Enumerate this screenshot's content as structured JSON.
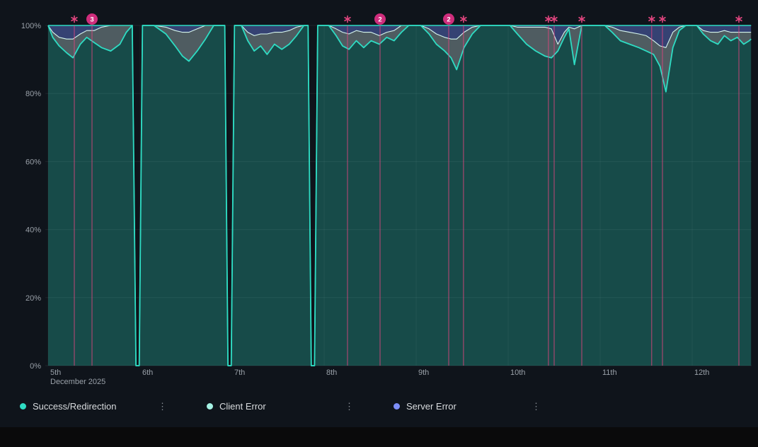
{
  "window": {
    "background": "#0f141b",
    "footer_color": "#0a0a0b"
  },
  "chart_data": {
    "type": "area",
    "variant": "stacked-percent-timeseries",
    "title": "",
    "x_axis": {
      "tick_labels": [
        "5th",
        "6th",
        "7th",
        "8th",
        "9th",
        "10th",
        "11th",
        "12th"
      ],
      "secondary_label": "December 2025"
    },
    "y_axis": {
      "tick_values": [
        0,
        20,
        40,
        60,
        80,
        100
      ],
      "tick_suffix": "%",
      "min": 0,
      "max": 100
    },
    "grid": true,
    "legend_position": "bottom",
    "series_meta": [
      {
        "name": "Success/Redirection",
        "line_color": "#2edcc3",
        "fill_color": "rgba(46,220,195,0.28)"
      },
      {
        "name": "Client Error",
        "line_color": "#d6f6ef",
        "fill_color": "rgba(185,210,214,0.38)"
      },
      {
        "name": "Server Error",
        "line_color": "#2edcc3",
        "fill_color": "rgba(110,134,247,0.40)"
      }
    ],
    "points_format": [
      "day_offset_from_first_tick",
      "success_pct",
      "client_error_pct",
      "server_error_pct"
    ],
    "points": [
      [
        0.0,
        100,
        0,
        0
      ],
      [
        0.05,
        96.5,
        1.5,
        2
      ],
      [
        0.12,
        94,
        2.5,
        3.5
      ],
      [
        0.2,
        92,
        4,
        4
      ],
      [
        0.27,
        90.5,
        5.5,
        4
      ],
      [
        0.35,
        94.5,
        3,
        2.5
      ],
      [
        0.42,
        96.5,
        2,
        1.5
      ],
      [
        0.5,
        95,
        3.5,
        1.5
      ],
      [
        0.58,
        93.5,
        6,
        0.5
      ],
      [
        0.68,
        92.5,
        7.5,
        0
      ],
      [
        0.78,
        94.5,
        5.5,
        0
      ],
      [
        0.85,
        98,
        2,
        0
      ],
      [
        0.915,
        100,
        0,
        0
      ],
      [
        0.955,
        0,
        0,
        0
      ],
      [
        0.99,
        0,
        0,
        0
      ],
      [
        1.025,
        100,
        0,
        0
      ],
      [
        1.15,
        100,
        0,
        0
      ],
      [
        1.28,
        97.5,
        2,
        0.5
      ],
      [
        1.38,
        94,
        4.5,
        1.5
      ],
      [
        1.46,
        91,
        7,
        2
      ],
      [
        1.53,
        89.5,
        8.5,
        2
      ],
      [
        1.62,
        92.5,
        6.5,
        1
      ],
      [
        1.71,
        96,
        4,
        0
      ],
      [
        1.8,
        100,
        0,
        0
      ],
      [
        1.92,
        100,
        0,
        0
      ],
      [
        1.955,
        0,
        0,
        0
      ],
      [
        1.99,
        0,
        0,
        0
      ],
      [
        2.025,
        100,
        0,
        0
      ],
      [
        2.1,
        100,
        0,
        0
      ],
      [
        2.17,
        95.5,
        2.5,
        2
      ],
      [
        2.24,
        92.5,
        4.5,
        3
      ],
      [
        2.31,
        94,
        3.5,
        2.5
      ],
      [
        2.38,
        91.5,
        6,
        2.5
      ],
      [
        2.46,
        94.5,
        3.5,
        2
      ],
      [
        2.54,
        93,
        5,
        2
      ],
      [
        2.62,
        94.5,
        4,
        1.5
      ],
      [
        2.7,
        97,
        2.5,
        0.5
      ],
      [
        2.78,
        100,
        0,
        0
      ],
      [
        2.825,
        100,
        0,
        0
      ],
      [
        2.86,
        0,
        0,
        0
      ],
      [
        2.895,
        0,
        0,
        0
      ],
      [
        2.93,
        100,
        0,
        0
      ],
      [
        3.05,
        100,
        0,
        0
      ],
      [
        3.13,
        97,
        2,
        1
      ],
      [
        3.2,
        94,
        4,
        2
      ],
      [
        3.27,
        93,
        4.5,
        2.5
      ],
      [
        3.35,
        95.5,
        3,
        1.5
      ],
      [
        3.43,
        93.5,
        4.5,
        2
      ],
      [
        3.51,
        95.5,
        2.5,
        2
      ],
      [
        3.6,
        94.5,
        2.5,
        3
      ],
      [
        3.68,
        96.5,
        1.5,
        2
      ],
      [
        3.76,
        95.5,
        3,
        1.5
      ],
      [
        3.84,
        98,
        2,
        0
      ],
      [
        3.92,
        100,
        0,
        0
      ],
      [
        4.05,
        100,
        0,
        0
      ],
      [
        4.14,
        97.5,
        1.5,
        1
      ],
      [
        4.22,
        94.5,
        3,
        2.5
      ],
      [
        4.31,
        92.5,
        4,
        3.5
      ],
      [
        4.38,
        90.5,
        5.5,
        4
      ],
      [
        4.44,
        87,
        9,
        4
      ],
      [
        4.52,
        93.5,
        4.5,
        2
      ],
      [
        4.61,
        97.5,
        2,
        0.5
      ],
      [
        4.7,
        100,
        0,
        0
      ],
      [
        4.85,
        100,
        0,
        0
      ],
      [
        5.02,
        100,
        0,
        0
      ],
      [
        5.1,
        97.5,
        2,
        0.5
      ],
      [
        5.2,
        94.5,
        5,
        0.5
      ],
      [
        5.3,
        92.5,
        7,
        0.5
      ],
      [
        5.4,
        91,
        8.5,
        0.5
      ],
      [
        5.47,
        90.5,
        8.5,
        1
      ],
      [
        5.54,
        92.5,
        2,
        5.5
      ],
      [
        5.61,
        96.5,
        1.5,
        2
      ],
      [
        5.66,
        99,
        0.5,
        0.5
      ],
      [
        5.72,
        88.5,
        10.5,
        1
      ],
      [
        5.8,
        100,
        0,
        0
      ],
      [
        5.95,
        100,
        0,
        0
      ],
      [
        6.05,
        100,
        0,
        0
      ],
      [
        6.13,
        98,
        1.5,
        0.5
      ],
      [
        6.22,
        95.5,
        3,
        1.5
      ],
      [
        6.32,
        94.5,
        3.5,
        2
      ],
      [
        6.42,
        93.5,
        4,
        2.5
      ],
      [
        6.5,
        92.5,
        4.5,
        3
      ],
      [
        6.58,
        91.5,
        4,
        4.5
      ],
      [
        6.65,
        88,
        6,
        6
      ],
      [
        6.715,
        80.5,
        13,
        6.5
      ],
      [
        6.79,
        93.5,
        4.5,
        2
      ],
      [
        6.86,
        98.5,
        1,
        0.5
      ],
      [
        6.93,
        100,
        0,
        0
      ],
      [
        7.05,
        100,
        0,
        0
      ],
      [
        7.12,
        97.5,
        1,
        1.5
      ],
      [
        7.2,
        95.5,
        2.5,
        2
      ],
      [
        7.28,
        94.5,
        3.5,
        2
      ],
      [
        7.35,
        97,
        1.5,
        1.5
      ],
      [
        7.42,
        95.5,
        2.5,
        2
      ],
      [
        7.49,
        96.5,
        1.5,
        2
      ],
      [
        7.56,
        94.5,
        3.5,
        2
      ],
      [
        7.62,
        95.5,
        2.5,
        2
      ],
      [
        7.64,
        96,
        2,
        2
      ]
    ],
    "annotations": [
      {
        "d": 0.285,
        "type": "star"
      },
      {
        "d": 0.477,
        "type": "badge",
        "count": "3"
      },
      {
        "d": 3.254,
        "type": "star"
      },
      {
        "d": 3.608,
        "type": "badge",
        "count": "2"
      },
      {
        "d": 4.354,
        "type": "badge",
        "count": "2"
      },
      {
        "d": 4.515,
        "type": "star"
      },
      {
        "d": 5.438,
        "type": "star"
      },
      {
        "d": 5.5,
        "type": "star"
      },
      {
        "d": 5.8,
        "type": "star"
      },
      {
        "d": 6.56,
        "type": "star"
      },
      {
        "d": 6.677,
        "type": "star"
      },
      {
        "d": 7.508,
        "type": "star"
      }
    ],
    "annotation_color": "#e0457f",
    "badge_color": "#cf2d7c",
    "axis_text_color": "#9aa1a9"
  },
  "legend": {
    "items": [
      {
        "label": "Success/Redirection",
        "color": "#2edcc3"
      },
      {
        "label": "Client Error",
        "color": "#a5f2e4"
      },
      {
        "label": "Server Error",
        "color": "#7d8ef8"
      }
    ],
    "menu_icon_glyph": "⋮"
  }
}
